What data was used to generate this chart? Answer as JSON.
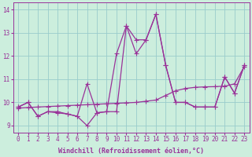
{
  "xlabel": "Windchill (Refroidissement éolien,°C)",
  "bg_color": "#cceedd",
  "line_color": "#993399",
  "grid_color": "#99cccc",
  "ylim": [
    8.7,
    14.3
  ],
  "xlim": [
    -0.5,
    23.5
  ],
  "yticks": [
    9,
    10,
    11,
    12,
    13,
    14
  ],
  "xticks": [
    0,
    1,
    2,
    3,
    4,
    5,
    6,
    7,
    8,
    9,
    10,
    11,
    12,
    13,
    14,
    15,
    16,
    17,
    18,
    19,
    20,
    21,
    22,
    23
  ],
  "line1_x": [
    0,
    1,
    2,
    3,
    4,
    5,
    6,
    7,
    8,
    9,
    10,
    11,
    12,
    13,
    14,
    15,
    16,
    17,
    18,
    19,
    20,
    21,
    22,
    23
  ],
  "line1_y": [
    9.8,
    10.0,
    9.4,
    9.6,
    9.6,
    9.5,
    9.4,
    10.8,
    9.55,
    9.6,
    12.1,
    13.3,
    12.7,
    12.7,
    13.8,
    11.6,
    10.0,
    10.0,
    9.8,
    9.8,
    9.8,
    11.1,
    10.4,
    11.6
  ],
  "line2_x": [
    0,
    1,
    2,
    3,
    4,
    5,
    6,
    7,
    8,
    9,
    10,
    11,
    12,
    13,
    14,
    15,
    16,
    17,
    18,
    19,
    20,
    21,
    22,
    23
  ],
  "line2_y": [
    9.8,
    10.0,
    9.4,
    9.6,
    9.55,
    9.5,
    9.4,
    9.0,
    9.55,
    9.6,
    9.6,
    13.3,
    12.1,
    12.7,
    13.8,
    11.6,
    10.0,
    10.0,
    9.8,
    9.8,
    9.8,
    11.1,
    10.4,
    11.6
  ],
  "line3_x": [
    0,
    1,
    2,
    3,
    4,
    5,
    6,
    7,
    8,
    9,
    10,
    11,
    12,
    13,
    14,
    15,
    16,
    17,
    18,
    19,
    20,
    21,
    22,
    23
  ],
  "line3_y": [
    9.75,
    9.78,
    9.8,
    9.82,
    9.84,
    9.86,
    9.88,
    9.9,
    9.92,
    9.94,
    9.96,
    9.98,
    10.0,
    10.05,
    10.1,
    10.3,
    10.5,
    10.6,
    10.65,
    10.67,
    10.68,
    10.7,
    10.8,
    11.55
  ],
  "marker": "+",
  "markersize": 4,
  "linewidth": 0.9,
  "tick_fontsize": 5.5,
  "label_fontsize": 6.0
}
